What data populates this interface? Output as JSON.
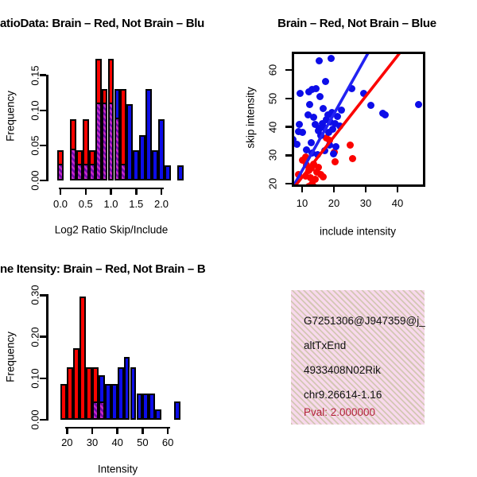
{
  "colors": {
    "red": "#fb0300",
    "blue": "#0d0de8",
    "purple_light": "#c428c8",
    "purple_dark": "#7008aa",
    "line_blue": "#2222f2",
    "line_red": "#fb0300",
    "axis": "#000000",
    "pink_bg": "#f8d9ec",
    "pink_texture": "#cdc4aa",
    "pval_text": "#b22238"
  },
  "chart_data": [
    {
      "type": "bar",
      "subtype": "histogram",
      "title": "atioData: Brain – Red, Not Brain – Blu",
      "xlabel": "Log2 Ratio Skip/Include",
      "ylabel": "Frequency",
      "xticks": [
        "0.0",
        "0.5",
        "1.0",
        "1.5",
        "2.0"
      ],
      "yticks": [
        "0.00",
        "0.05",
        "0.10",
        "0.15"
      ],
      "xlim": [
        -0.1,
        2.45
      ],
      "ylim": [
        0,
        0.175
      ],
      "bin_width": 0.125,
      "legend_note": "red = Brain, blue = Not Brain, hatched purple = overlap",
      "bars": [
        {
          "center": 0.0,
          "height": 0.043,
          "group": "red",
          "overlap": 0.022
        },
        {
          "center": 0.25,
          "height": 0.087,
          "group": "red",
          "overlap": 0.043
        },
        {
          "center": 0.375,
          "height": 0.043,
          "group": "red",
          "overlap": 0.022
        },
        {
          "center": 0.5,
          "height": 0.087,
          "group": "red",
          "overlap": 0.022
        },
        {
          "center": 0.625,
          "height": 0.043,
          "group": "red",
          "overlap": 0.022
        },
        {
          "center": 0.75,
          "height": 0.174,
          "group": "red",
          "overlap": 0.109
        },
        {
          "center": 0.875,
          "height": 0.13,
          "group": "red",
          "overlap": 0.109
        },
        {
          "center": 1.0,
          "height": 0.174,
          "group": "red",
          "overlap": 0.109
        },
        {
          "center": 1.125,
          "height": 0.13,
          "group": "blue",
          "overlap": 0.087
        },
        {
          "center": 1.25,
          "height": 0.13,
          "group": "red",
          "overlap": 0.022
        },
        {
          "center": 1.375,
          "height": 0.109,
          "group": "blue",
          "overlap": 0
        },
        {
          "center": 1.5,
          "height": 0.043,
          "group": "blue",
          "overlap": 0
        },
        {
          "center": 1.625,
          "height": 0.065,
          "group": "blue",
          "overlap": 0
        },
        {
          "center": 1.75,
          "height": 0.13,
          "group": "blue",
          "overlap": 0
        },
        {
          "center": 1.875,
          "height": 0.043,
          "group": "blue",
          "overlap": 0
        },
        {
          "center": 2.0,
          "height": 0.087,
          "group": "blue",
          "overlap": 0
        },
        {
          "center": 2.125,
          "height": 0.022,
          "group": "blue",
          "overlap": 0
        },
        {
          "center": 2.375,
          "height": 0.022,
          "group": "blue",
          "overlap": 0
        }
      ]
    },
    {
      "type": "scatter",
      "title": "Brain – Red, Not Brain – Blue",
      "xlabel": "include intensity",
      "ylabel": "skip intensity",
      "xticks": [
        "10",
        "20",
        "30",
        "40"
      ],
      "yticks": [
        "20",
        "30",
        "40",
        "50",
        "60"
      ],
      "xlim": [
        6.8,
        48.5
      ],
      "ylim": [
        19.3,
        66.5
      ],
      "series": [
        {
          "name": "Brain",
          "color_key": "red",
          "points": [
            [
              8.8,
              23.2
            ],
            [
              10.2,
              28.3
            ],
            [
              11,
              29.5
            ],
            [
              11.4,
              26.5
            ],
            [
              12,
              24.5
            ],
            [
              12.5,
              22
            ],
            [
              13,
              20
            ],
            [
              13.2,
              17.5
            ],
            [
              13.8,
              18.8
            ],
            [
              14.2,
              21.5
            ],
            [
              14.6,
              24
            ],
            [
              15.2,
              25.8
            ],
            [
              15.8,
              23.2
            ],
            [
              13.5,
              26.8
            ],
            [
              12.8,
              25.4
            ],
            [
              11.2,
              22.8
            ],
            [
              12.2,
              19
            ],
            [
              14,
              16.8
            ],
            [
              15,
              17.5
            ],
            [
              16.5,
              22.5
            ],
            [
              17.5,
              36
            ],
            [
              18.7,
              35.3
            ],
            [
              20,
              31
            ],
            [
              20.3,
              27.8
            ],
            [
              25,
              33.6
            ],
            [
              25.8,
              28.7
            ]
          ]
        },
        {
          "name": "Not Brain",
          "color_key": "blue",
          "points": [
            [
              9.4,
              51.8
            ],
            [
              12.1,
              52.5
            ],
            [
              13.2,
              53.1
            ],
            [
              14.4,
              53.4
            ],
            [
              15.3,
              63.2
            ],
            [
              19,
              64.2
            ],
            [
              17.3,
              55.9
            ],
            [
              15.5,
              50.8
            ],
            [
              12.3,
              48
            ],
            [
              16.5,
              46.4
            ],
            [
              19.4,
              45
            ],
            [
              22.4,
              46
            ],
            [
              25.7,
              53.4
            ],
            [
              29.4,
              51.8
            ],
            [
              31.5,
              47.5
            ],
            [
              35.3,
              44.7
            ],
            [
              36.2,
              44.3
            ],
            [
              46.5,
              48
            ],
            [
              7.2,
              35.6
            ],
            [
              8.8,
              38.5
            ],
            [
              8.3,
              33.8
            ],
            [
              10,
              38
            ],
            [
              9.2,
              40.8
            ],
            [
              11.3,
              32
            ],
            [
              12.9,
              34.3
            ],
            [
              15.4,
              39.4
            ],
            [
              16.3,
              41.3
            ],
            [
              18.3,
              38
            ],
            [
              13.5,
              43.5
            ],
            [
              14.2,
              40.8
            ],
            [
              15,
              38.7
            ],
            [
              15.8,
              37
            ],
            [
              16.8,
              39.8
            ],
            [
              17.5,
              42.5
            ],
            [
              18.2,
              44.2
            ],
            [
              18.8,
              41.8
            ],
            [
              19.5,
              39.3
            ],
            [
              20.3,
              41.2
            ],
            [
              21,
              43.8
            ],
            [
              21.8,
              40.3
            ],
            [
              13,
              30.8
            ],
            [
              14.8,
              30.2
            ],
            [
              17,
              31.5
            ],
            [
              18.5,
              33.5
            ],
            [
              19.8,
              30.5
            ],
            [
              20.5,
              33
            ],
            [
              11.8,
              44.2
            ]
          ]
        }
      ],
      "lines": [
        {
          "color_key": "line_blue",
          "from": [
            7.0,
            19.0
          ],
          "to": [
            31.3,
            67.5
          ]
        },
        {
          "color_key": "line_red",
          "from": [
            7.7,
            19.3
          ],
          "to": [
            40.8,
            66.5
          ]
        }
      ]
    },
    {
      "type": "bar",
      "subtype": "histogram",
      "title": "ne Itensity: Brain – Red, Not Brain – B",
      "xlabel": "Intensity",
      "ylabel": "Frequency",
      "xticks": [
        "20",
        "30",
        "40",
        "50",
        "60"
      ],
      "yticks": [
        "0.00",
        "0.10",
        "0.20",
        "0.30"
      ],
      "xlim": [
        16,
        66
      ],
      "ylim": [
        0,
        0.31
      ],
      "bin_width": 2.5,
      "legend_note": "red = Brain, blue = Not Brain, hatched purple = overlap",
      "bars": [
        {
          "center": 18.75,
          "height": 0.086,
          "group": "red",
          "overlap": 0
        },
        {
          "center": 21.25,
          "height": 0.127,
          "group": "red",
          "overlap": 0
        },
        {
          "center": 23.75,
          "height": 0.172,
          "group": "red",
          "overlap": 0
        },
        {
          "center": 26.25,
          "height": 0.296,
          "group": "red",
          "overlap": 0
        },
        {
          "center": 28.75,
          "height": 0.127,
          "group": "red",
          "overlap": 0
        },
        {
          "center": 31.25,
          "height": 0.127,
          "group": "red",
          "overlap": 0.041
        },
        {
          "center": 33.75,
          "height": 0.108,
          "group": "blue",
          "overlap": 0.041
        },
        {
          "center": 36.25,
          "height": 0.086,
          "group": "blue",
          "overlap": 0
        },
        {
          "center": 38.75,
          "height": 0.086,
          "group": "blue",
          "overlap": 0
        },
        {
          "center": 41.25,
          "height": 0.127,
          "group": "blue",
          "overlap": 0
        },
        {
          "center": 43.75,
          "height": 0.152,
          "group": "blue",
          "overlap": 0
        },
        {
          "center": 46.25,
          "height": 0.127,
          "group": "blue",
          "overlap": 0
        },
        {
          "center": 48.75,
          "height": 0.063,
          "group": "blue",
          "overlap": 0
        },
        {
          "center": 51.25,
          "height": 0.063,
          "group": "blue",
          "overlap": 0
        },
        {
          "center": 53.75,
          "height": 0.063,
          "group": "blue",
          "overlap": 0
        },
        {
          "center": 56.25,
          "height": 0.024,
          "group": "blue",
          "overlap": 0
        },
        {
          "center": 63.75,
          "height": 0.045,
          "group": "blue",
          "overlap": 0
        }
      ]
    }
  ],
  "info_box": {
    "lines": [
      "G7251306@J947359@j_",
      "altTxEnd",
      "4933408N02Rik",
      "chr9.26614-1.16"
    ],
    "pval": "Pval: 2.000000"
  }
}
